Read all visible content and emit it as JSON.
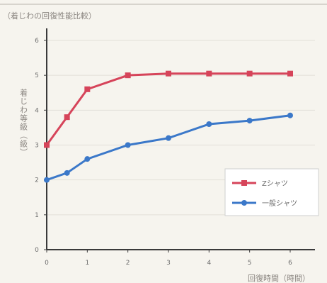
{
  "chart_data": {
    "type": "line",
    "title": "（着じわの回復性能比較）",
    "xlabel": "回復時間（時間）",
    "ylabel": "着じわ等級（級）",
    "xlim": [
      0,
      6
    ],
    "ylim": [
      0,
      6
    ],
    "x_ticks": [
      "0",
      "1",
      "2",
      "3",
      "4",
      "5",
      "6"
    ],
    "y_ticks": [
      "0",
      "1",
      "2",
      "3",
      "4",
      "5",
      "6"
    ],
    "legend_position": "right",
    "series": [
      {
        "name": "Zシャツ",
        "color": "#d6445a",
        "marker": "square",
        "x": [
          0,
          0.5,
          1,
          2,
          3,
          4,
          5,
          6
        ],
        "y": [
          3.0,
          3.8,
          4.6,
          5.0,
          5.05,
          5.05,
          5.05,
          5.05
        ]
      },
      {
        "name": "一般シャツ",
        "color": "#3b78c9",
        "marker": "circle",
        "x": [
          0,
          0.5,
          1,
          2,
          3,
          4,
          5,
          6
        ],
        "y": [
          2.0,
          2.2,
          2.6,
          3.0,
          3.2,
          3.6,
          3.7,
          3.85
        ]
      }
    ]
  }
}
